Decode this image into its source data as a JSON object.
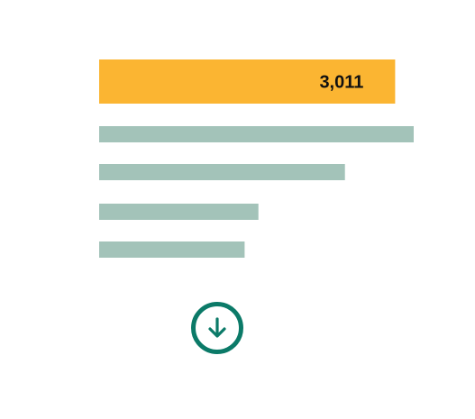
{
  "chart_data": {
    "type": "bar",
    "orientation": "horizontal",
    "title": "",
    "xlabel": "",
    "ylabel": "",
    "categories": [
      "",
      "",
      "",
      "",
      ""
    ],
    "values": [
      3011,
      3200,
      2500,
      1620,
      1480
    ],
    "value_labels": [
      "3,011",
      "",
      "",
      "",
      ""
    ],
    "xlim": [
      0,
      3200
    ],
    "grid": false,
    "legend": "none"
  },
  "colors": {
    "highlight_bar": "#fbb532",
    "other_bars": "#a3c3b9",
    "value_text": "#111111",
    "download_ring": "#0b7a68"
  },
  "icons": {
    "download": "download-arrow-icon"
  }
}
